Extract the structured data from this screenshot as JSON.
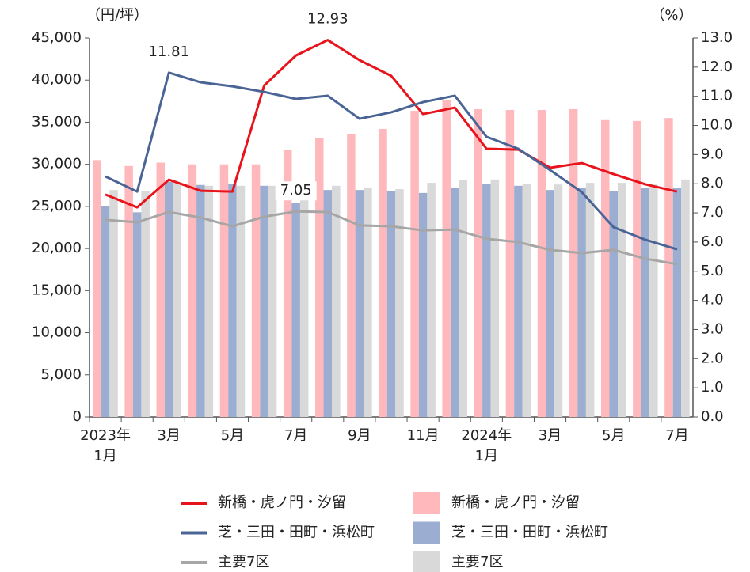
{
  "chart_data": {
    "type": "combo",
    "y_label": "（円/坪）",
    "y2_label": "（%）",
    "categories": [
      "2023年\n1月",
      null,
      "3月",
      null,
      "5月",
      null,
      "7月",
      null,
      "9月",
      null,
      "11月",
      null,
      "2024年\n1月",
      null,
      "3月",
      null,
      "5月",
      null,
      "7月"
    ],
    "ylim": [
      0,
      45000
    ],
    "yticks": [
      0,
      {
        "value": 5000,
        "label": "5,000"
      },
      {
        "value": 10000,
        "label": "10,000"
      },
      {
        "value": 15000,
        "label": "15,000"
      },
      {
        "value": 20000,
        "label": "20,000"
      },
      {
        "value": 25000,
        "label": "25,000"
      },
      {
        "value": 30000,
        "label": "30,000"
      },
      {
        "value": 35000,
        "label": "35,000"
      },
      {
        "value": 40000,
        "label": "40,000"
      },
      {
        "value": 45000,
        "label": "45,000"
      }
    ],
    "y2lim": [
      0,
      13
    ],
    "y2ticks": [
      {
        "value": 0,
        "label": "0.0"
      },
      {
        "value": 1,
        "label": "1.0"
      },
      {
        "value": 2,
        "label": "2.0"
      },
      {
        "value": 3,
        "label": "3.0"
      },
      {
        "value": 4,
        "label": "4.0"
      },
      {
        "value": 5,
        "label": "5.0"
      },
      {
        "value": 6,
        "label": "6.0"
      },
      {
        "value": 7,
        "label": "7.0"
      },
      {
        "value": 8,
        "label": "8.0"
      },
      {
        "value": 9,
        "label": "9.0"
      },
      {
        "value": 10,
        "label": "10.0"
      },
      {
        "value": 11,
        "label": "11.0"
      },
      {
        "value": 12,
        "label": "12.0"
      },
      {
        "value": 13,
        "label": "13.0"
      }
    ],
    "series": [
      {
        "name": "新橋・虎ノ門・汐留",
        "type": "bar",
        "color": "#ffb9bd",
        "values": [
          30500,
          29800,
          30200,
          30000,
          30000,
          30000,
          31750,
          33100,
          33550,
          34200,
          36350,
          37600,
          36550,
          36450,
          36450,
          36550,
          35250,
          35150,
          35500
        ]
      },
      {
        "name": "芝・三田・田町・浜松町",
        "type": "bar",
        "color": "#9badd0",
        "values": [
          25000,
          24300,
          27900,
          27550,
          27700,
          27450,
          25450,
          26950,
          26950,
          26800,
          26600,
          27250,
          27700,
          27450,
          26950,
          27250,
          26850,
          27150,
          27150
        ]
      },
      {
        "name": "主要7区",
        "type": "bar",
        "color": "#d9d9d9",
        "values": [
          26950,
          26850,
          27800,
          27450,
          27450,
          27450,
          25850,
          27450,
          27250,
          27050,
          27800,
          28100,
          28200,
          27700,
          27600,
          27800,
          27800,
          27600,
          28200
        ]
      },
      {
        "name": "新橋・虎ノ門・汐留",
        "type": "line",
        "axis": "y2",
        "color": "#e8141c",
        "label_at": 7,
        "values": [
          7.63,
          7.19,
          8.14,
          7.76,
          7.73,
          11.37,
          12.4,
          12.93,
          12.24,
          11.7,
          10.39,
          10.61,
          9.2,
          9.17,
          8.55,
          8.71,
          8.33,
          7.98,
          7.73
        ]
      },
      {
        "name": "芝・三田・田町・浜松町",
        "type": "line",
        "axis": "y2",
        "color": "#4a6495",
        "label_at": 2,
        "values": [
          8.25,
          7.73,
          11.81,
          11.48,
          11.34,
          11.15,
          10.91,
          11.02,
          10.23,
          10.45,
          10.8,
          11.02,
          9.61,
          9.2,
          8.47,
          7.71,
          6.51,
          6.08,
          5.75
        ]
      },
      {
        "name": "主要7区",
        "type": "line",
        "axis": "y2",
        "color": "#a6a6a6",
        "label_at": 6,
        "values": [
          6.76,
          6.68,
          7.03,
          6.84,
          6.54,
          6.87,
          7.05,
          7.03,
          6.57,
          6.54,
          6.4,
          6.43,
          6.11,
          6.0,
          5.73,
          5.62,
          5.73,
          5.43,
          5.24
        ]
      }
    ]
  }
}
